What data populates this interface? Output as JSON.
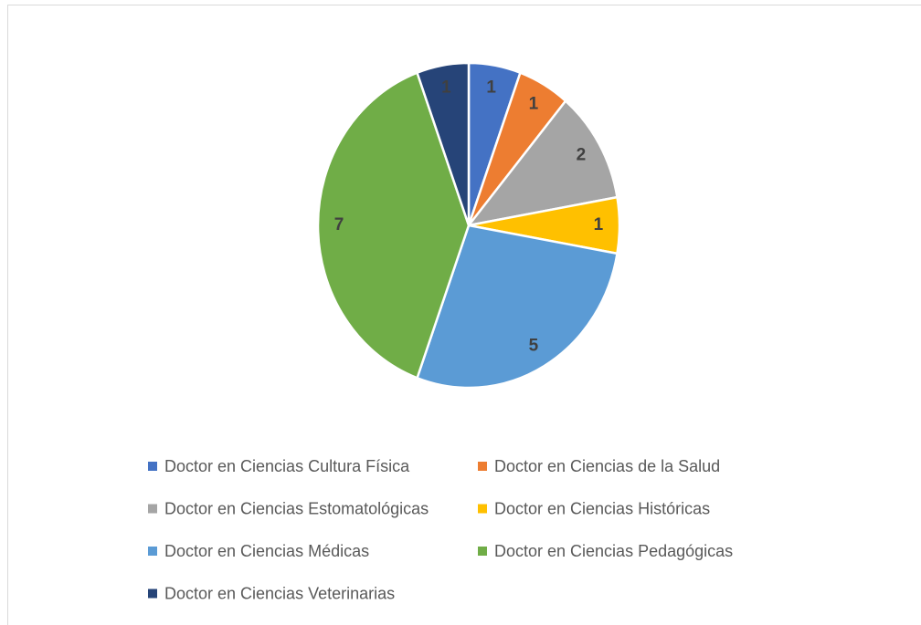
{
  "chart_data": {
    "type": "pie",
    "categories": [
      "Doctor en Ciencias Cultura Física",
      "Doctor en Ciencias de la Salud",
      "Doctor en Ciencias Estomatológicas",
      "Doctor en Ciencias Históricas",
      "Doctor en Ciencias Médicas",
      "Doctor en Ciencias Pedagógicas",
      "Doctor en Ciencias Veterinarias"
    ],
    "values": [
      1,
      1,
      2,
      1,
      5,
      7,
      1
    ],
    "colors": [
      "#4472c4",
      "#ed7d31",
      "#a5a5a5",
      "#ffc000",
      "#5b9bd5",
      "#70ad47",
      "#264478"
    ],
    "legend": "bottom"
  }
}
